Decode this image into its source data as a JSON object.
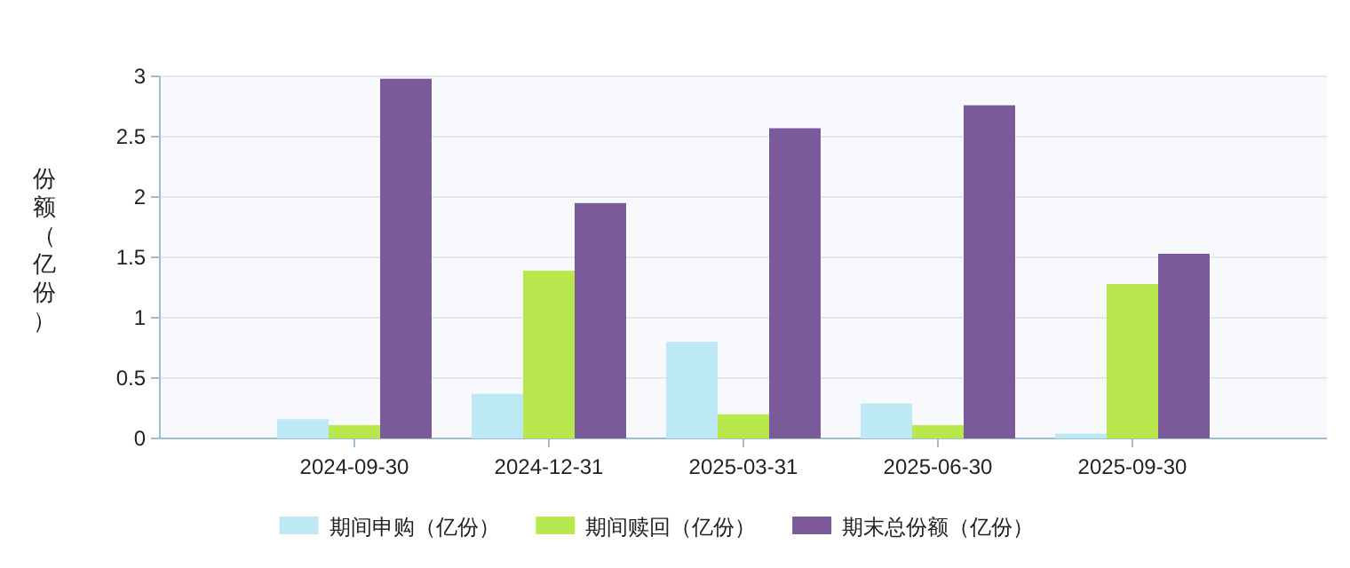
{
  "chart_data": {
    "type": "bar",
    "ylabel": "份额（亿份）",
    "categories": [
      "2024-09-30",
      "2024-12-31",
      "2025-03-31",
      "2025-06-30",
      "2025-09-30"
    ],
    "series": [
      {
        "name": "期间申购（亿份）",
        "color": "#bde8f6",
        "values": [
          0.16,
          0.37,
          0.8,
          0.29,
          0.04
        ]
      },
      {
        "name": "期间赎回（亿份）",
        "color": "#b9e84e",
        "values": [
          0.11,
          1.39,
          0.2,
          0.11,
          1.28
        ]
      },
      {
        "name": "期末总份额（亿份）",
        "color": "#7b5a9c",
        "values": [
          2.98,
          1.95,
          2.57,
          2.76,
          1.53
        ]
      }
    ],
    "ylim": [
      0,
      3
    ],
    "yticks": [
      0,
      0.5,
      1,
      1.5,
      2,
      2.5,
      3
    ],
    "grid": "y",
    "legend": "bottom"
  }
}
